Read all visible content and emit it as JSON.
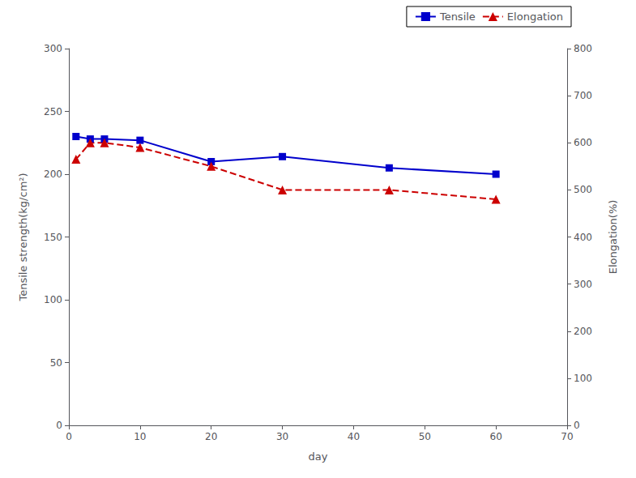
{
  "chart_data": {
    "type": "line",
    "xlabel": "day",
    "ylabel": "Tensile strength(kg/cm²)",
    "y2label": "Elongation(%)",
    "x": [
      1,
      3,
      5,
      10,
      20,
      30,
      45,
      60
    ],
    "series": [
      {
        "name": "Tensile",
        "color": "#0000cc",
        "marker": "square",
        "line_style": "solid",
        "values": [
          230,
          228,
          228,
          227,
          210,
          214,
          205,
          200
        ]
      },
      {
        "name": "Elongation",
        "color": "#cc0000",
        "marker": "triangle",
        "line_style": "dashed",
        "axis": "y2",
        "values": [
          565,
          600,
          600,
          590,
          550,
          500,
          500,
          480
        ]
      }
    ],
    "xlim": [
      0,
      70
    ],
    "xticks": [
      0,
      10,
      20,
      30,
      40,
      50,
      60,
      70
    ],
    "ylim": [
      0,
      300
    ],
    "yticks": [
      0,
      50,
      100,
      150,
      200,
      250,
      300
    ],
    "y2lim": [
      0,
      800
    ],
    "y2ticks": [
      0,
      100,
      200,
      300,
      400,
      500,
      600,
      700,
      800
    ],
    "grid": false,
    "legend": "upper right"
  }
}
